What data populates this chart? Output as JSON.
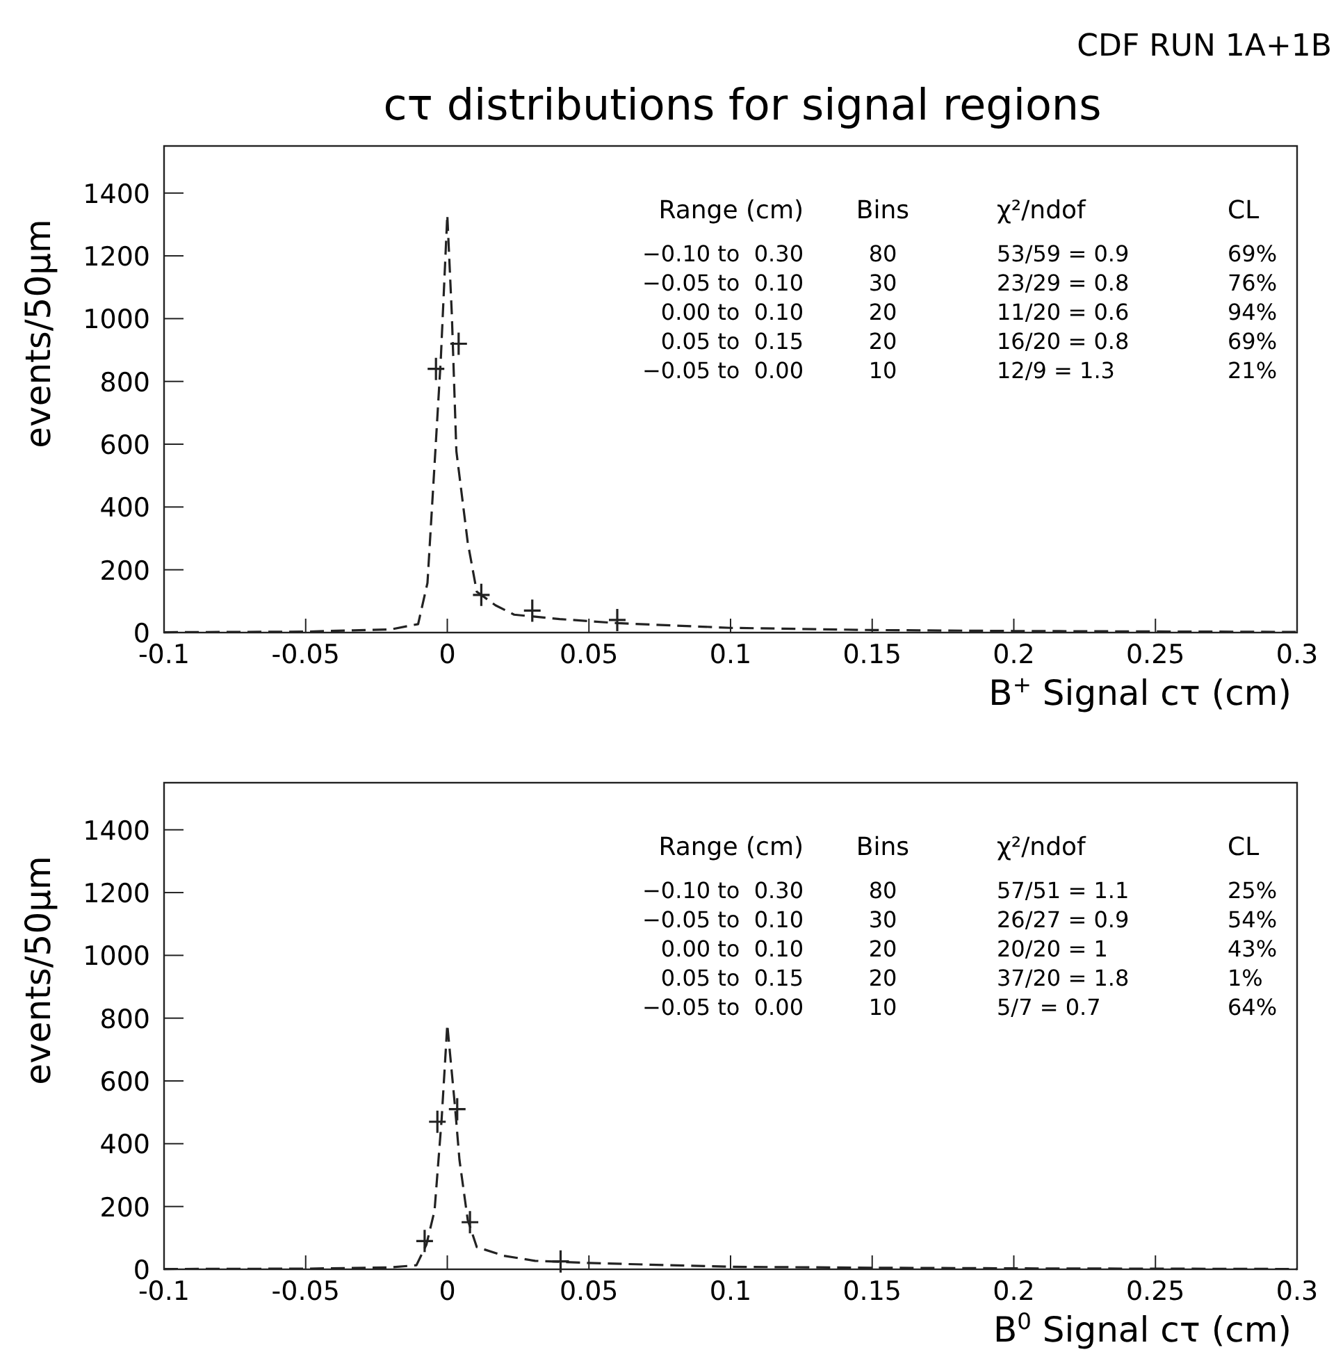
{
  "chart_data": [
    {
      "type": "scatter",
      "subtitle": "CDF RUN 1A+1B",
      "title": "cτ distributions for signal regions",
      "xlabel": "B$^{+}$ Signal cτ (cm)",
      "ylabel": "events/50μm",
      "xlim": [
        -0.1,
        0.3
      ],
      "xticks": [
        -0.1,
        -0.05,
        0,
        0.05,
        0.1,
        0.15,
        0.2,
        0.25,
        0.3
      ],
      "ylim": [
        0,
        1550
      ],
      "yticks": [
        0,
        200,
        400,
        600,
        800,
        1000,
        1200,
        1400
      ],
      "grid": false,
      "annotations": [
        "Range (cm)\tBins\tχ²/ndof\tCL",
        "−0.10 to  0.30\t80\t53/59 = 0.9\t69%",
        "−0.05 to  0.10\t30\t23/29 = 0.8\t76%",
        "0.00 to  0.10\t20\t11/20 = 0.6\t94%",
        "0.05 to  0.15\t20\t16/20 = 0.8\t69%",
        "−0.05 to  0.00\t10\t12/9 = 1.3\t21%"
      ],
      "series": [
        {
          "type": "line",
          "line_style": "dashed",
          "color": "#222222",
          "x": [
            -0.1,
            -0.05,
            -0.02,
            -0.0103,
            -0.007,
            -0.0047,
            -0.0023,
            0,
            0.0016,
            0.0032,
            0.0056,
            0.0072,
            0.0104,
            0.017,
            0.0236,
            0.0397,
            0.06,
            0.1,
            0.15,
            0.2,
            0.3
          ],
          "values": [
            1,
            3,
            10,
            27,
            158,
            505,
            870,
            1330,
            1013,
            578,
            404,
            288,
            130,
            87,
            57,
            43,
            30,
            15,
            8,
            5,
            2
          ]
        },
        {
          "type": "scatter",
          "marker": "cross",
          "color": "#222222",
          "x": [
            -0.004,
            0.004,
            0.012,
            0.03,
            0.06
          ],
          "values": [
            840,
            920,
            120,
            70,
            40
          ]
        }
      ]
    },
    {
      "type": "scatter",
      "xlabel": "B$^{0}$ Signal cτ (cm)",
      "ylabel": "events/50μm",
      "xlim": [
        -0.1,
        0.3
      ],
      "xticks": [
        -0.1,
        -0.05,
        0,
        0.05,
        0.1,
        0.15,
        0.2,
        0.25,
        0.3
      ],
      "ylim": [
        0,
        1550
      ],
      "yticks": [
        0,
        200,
        400,
        600,
        800,
        1000,
        1200,
        1400
      ],
      "grid": false,
      "annotations": [
        "Range (cm)\tBins\tχ²/ndof\tCL",
        "−0.10 to  0.30\t80\t57/51 = 1.1\t25%",
        "−0.05 to  0.10\t30\t26/27 = 0.9\t54%",
        "0.00 to  0.10\t20\t20/20 = 1\t43%",
        "0.05 to  0.15\t20\t37/20 = 1.8\t1%",
        "−0.05 to  0.00\t10\t5/7 = 0.7\t64%"
      ],
      "series": [
        {
          "type": "line",
          "line_style": "dashed",
          "color": "#222222",
          "x": [
            -0.1,
            -0.05,
            -0.02,
            -0.0109,
            -0.0074,
            -0.0045,
            -0.002,
            0,
            0.0027,
            0.0043,
            0.0072,
            0.0104,
            0.02,
            0.031,
            0.05,
            0.1,
            0.15,
            0.2,
            0.3
          ],
          "values": [
            1,
            2,
            6,
            13,
            78,
            187,
            478,
            780,
            520,
            348,
            158,
            71,
            43,
            27,
            20,
            8,
            5,
            3,
            1
          ]
        },
        {
          "type": "scatter",
          "marker": "cross",
          "color": "#222222",
          "x": [
            -0.008,
            -0.0035,
            0.0035,
            0.008,
            0.04
          ],
          "values": [
            90,
            470,
            510,
            150,
            25
          ]
        }
      ]
    }
  ]
}
